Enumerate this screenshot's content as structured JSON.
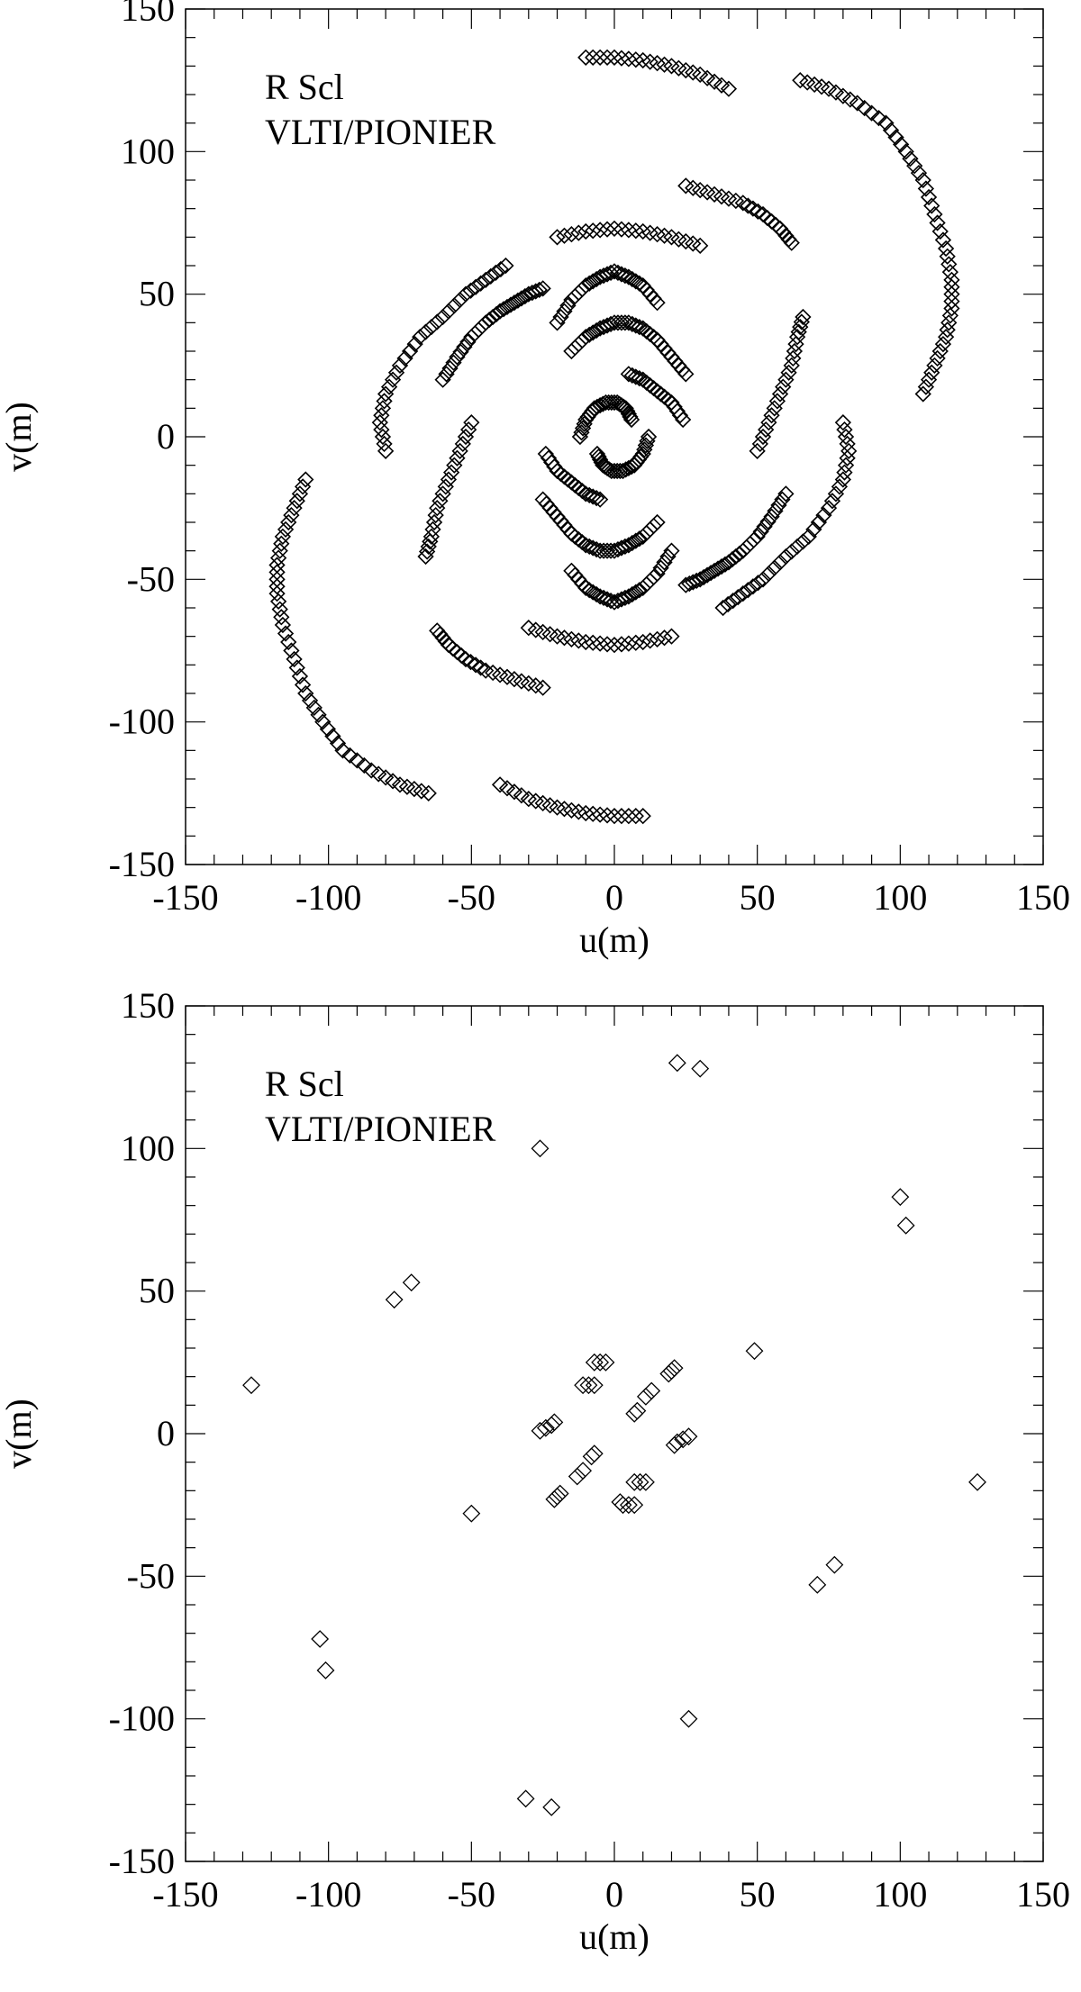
{
  "chart_data": [
    {
      "type": "scatter",
      "title": "",
      "xlabel": "u(m)",
      "ylabel": "v(m)",
      "xlim": [
        -150,
        150
      ],
      "ylim": [
        -150,
        150
      ],
      "xticks": [
        "-150",
        "-100",
        "-50",
        "0",
        "50",
        "100",
        "150"
      ],
      "yticks": [
        "-150",
        "-100",
        "-50",
        "0",
        "50",
        "100",
        "150"
      ],
      "annotations": [
        "R Scl",
        "VLTI/PIONIER"
      ],
      "marker": "open-diamond",
      "grid": false,
      "series": [
        {
          "arc": [
            [
              -20,
              40
            ],
            [
              -15,
              48
            ],
            [
              -10,
              53
            ],
            [
              -5,
              56
            ],
            [
              0,
              58
            ],
            [
              5,
              56
            ],
            [
              10,
              53
            ],
            [
              15,
              47
            ]
          ]
        },
        {
          "arc": [
            [
              20,
              -40
            ],
            [
              15,
              -48
            ],
            [
              10,
              -53
            ],
            [
              5,
              -56
            ],
            [
              0,
              -58
            ],
            [
              -5,
              -56
            ],
            [
              -10,
              -53
            ],
            [
              -15,
              -47
            ]
          ]
        },
        {
          "arc": [
            [
              -15,
              30
            ],
            [
              -10,
              35
            ],
            [
              -5,
              38
            ],
            [
              0,
              40
            ],
            [
              5,
              40
            ],
            [
              10,
              38
            ],
            [
              15,
              34
            ],
            [
              20,
              28
            ],
            [
              25,
              22
            ]
          ]
        },
        {
          "arc": [
            [
              15,
              -30
            ],
            [
              10,
              -35
            ],
            [
              5,
              -38
            ],
            [
              0,
              -40
            ],
            [
              -5,
              -40
            ],
            [
              -10,
              -38
            ],
            [
              -15,
              -34
            ],
            [
              -20,
              -28
            ],
            [
              -25,
              -22
            ]
          ]
        },
        {
          "arc": [
            [
              -60,
              20
            ],
            [
              -55,
              28
            ],
            [
              -50,
              35
            ],
            [
              -45,
              40
            ],
            [
              -40,
              44
            ],
            [
              -35,
              47
            ],
            [
              -30,
              50
            ],
            [
              -25,
              52
            ]
          ]
        },
        {
          "arc": [
            [
              60,
              -20
            ],
            [
              55,
              -28
            ],
            [
              50,
              -35
            ],
            [
              45,
              -40
            ],
            [
              40,
              -44
            ],
            [
              35,
              -47
            ],
            [
              30,
              -50
            ],
            [
              25,
              -52
            ]
          ]
        },
        {
          "arc": [
            [
              -80,
              -5
            ],
            [
              -82,
              5
            ],
            [
              -80,
              15
            ],
            [
              -75,
              25
            ],
            [
              -68,
              35
            ],
            [
              -60,
              42
            ],
            [
              -52,
              50
            ],
            [
              -45,
              55
            ],
            [
              -38,
              60
            ]
          ]
        },
        {
          "arc": [
            [
              80,
              5
            ],
            [
              82,
              -5
            ],
            [
              80,
              -15
            ],
            [
              75,
              -25
            ],
            [
              68,
              -35
            ],
            [
              60,
              -42
            ],
            [
              52,
              -50
            ],
            [
              45,
              -55
            ],
            [
              38,
              -60
            ]
          ]
        },
        {
          "arc": [
            [
              -20,
              70
            ],
            [
              -10,
              72
            ],
            [
              0,
              73
            ],
            [
              10,
              72
            ],
            [
              20,
              70
            ],
            [
              30,
              67
            ]
          ]
        },
        {
          "arc": [
            [
              20,
              -70
            ],
            [
              10,
              -72
            ],
            [
              0,
              -73
            ],
            [
              -10,
              -72
            ],
            [
              -20,
              -70
            ],
            [
              -30,
              -67
            ]
          ]
        },
        {
          "arc": [
            [
              25,
              88
            ],
            [
              35,
              85
            ],
            [
              45,
              82
            ],
            [
              52,
              78
            ],
            [
              58,
              73
            ],
            [
              62,
              68
            ]
          ]
        },
        {
          "arc": [
            [
              -25,
              -88
            ],
            [
              -35,
              -85
            ],
            [
              -45,
              -82
            ],
            [
              -52,
              -78
            ],
            [
              -58,
              -73
            ],
            [
              -62,
              -68
            ]
          ]
        },
        {
          "arc": [
            [
              -10,
              133
            ],
            [
              0,
              133
            ],
            [
              10,
              132
            ],
            [
              20,
              130
            ],
            [
              30,
              127
            ],
            [
              40,
              122
            ]
          ]
        },
        {
          "arc": [
            [
              10,
              -133
            ],
            [
              0,
              -133
            ],
            [
              -10,
              -132
            ],
            [
              -20,
              -130
            ],
            [
              -30,
              -127
            ],
            [
              -40,
              -122
            ]
          ]
        },
        {
          "arc": [
            [
              65,
              125
            ],
            [
              75,
              122
            ],
            [
              85,
              117
            ],
            [
              95,
              110
            ],
            [
              102,
              100
            ],
            [
              108,
              90
            ],
            [
              112,
              78
            ],
            [
              116,
              66
            ],
            [
              118,
              55
            ],
            [
              118,
              45
            ],
            [
              116,
              35
            ],
            [
              112,
              25
            ],
            [
              108,
              15
            ]
          ]
        },
        {
          "arc": [
            [
              -65,
              -125
            ],
            [
              -75,
              -122
            ],
            [
              -85,
              -117
            ],
            [
              -95,
              -110
            ],
            [
              -102,
              -100
            ],
            [
              -108,
              -90
            ],
            [
              -112,
              -78
            ],
            [
              -116,
              -66
            ],
            [
              -118,
              -55
            ],
            [
              -118,
              -45
            ],
            [
              -116,
              -35
            ],
            [
              -112,
              -25
            ],
            [
              -108,
              -15
            ]
          ]
        },
        {
          "arc": [
            [
              50,
              -5
            ],
            [
              54,
              5
            ],
            [
              58,
              15
            ],
            [
              62,
              25
            ],
            [
              64,
              35
            ],
            [
              66,
              42
            ]
          ]
        },
        {
          "arc": [
            [
              -50,
              5
            ],
            [
              -54,
              -5
            ],
            [
              -58,
              -15
            ],
            [
              -62,
              -25
            ],
            [
              -64,
              -35
            ],
            [
              -66,
              -42
            ]
          ]
        },
        {
          "arc": [
            [
              -12,
              0
            ],
            [
              -10,
              6
            ],
            [
              -7,
              10
            ],
            [
              -3,
              12
            ],
            [
              1,
              12
            ],
            [
              4,
              10
            ],
            [
              6,
              6
            ]
          ]
        },
        {
          "arc": [
            [
              12,
              0
            ],
            [
              10,
              -6
            ],
            [
              7,
              -10
            ],
            [
              3,
              -12
            ],
            [
              -1,
              -12
            ],
            [
              -4,
              -10
            ],
            [
              -6,
              -6
            ]
          ]
        },
        {
          "arc": [
            [
              5,
              22
            ],
            [
              10,
              20
            ],
            [
              15,
              16
            ],
            [
              20,
              12
            ],
            [
              24,
              6
            ]
          ]
        },
        {
          "arc": [
            [
              -5,
              -22
            ],
            [
              -10,
              -20
            ],
            [
              -15,
              -16
            ],
            [
              -20,
              -12
            ],
            [
              -24,
              -6
            ]
          ]
        }
      ]
    },
    {
      "type": "scatter",
      "title": "",
      "xlabel": "u(m)",
      "ylabel": "v(m)",
      "xlim": [
        -150,
        150
      ],
      "ylim": [
        -150,
        150
      ],
      "xticks": [
        "-150",
        "-100",
        "-50",
        "0",
        "50",
        "100",
        "150"
      ],
      "yticks": [
        "-150",
        "-100",
        "-50",
        "0",
        "50",
        "100",
        "150"
      ],
      "annotations": [
        "R Scl",
        "VLTI/PIONIER"
      ],
      "marker": "open-diamond",
      "grid": false,
      "points": [
        [
          22,
          130
        ],
        [
          30,
          128
        ],
        [
          -26,
          100
        ],
        [
          100,
          83
        ],
        [
          102,
          73
        ],
        [
          -77,
          47
        ],
        [
          -71,
          53
        ],
        [
          -127,
          17
        ],
        [
          49,
          29
        ],
        [
          -50,
          -28
        ],
        [
          -103,
          -72
        ],
        [
          -101,
          -83
        ],
        [
          -31,
          -128
        ],
        [
          -22,
          -131
        ],
        [
          71,
          -53
        ],
        [
          77,
          -46
        ],
        [
          127,
          -17
        ],
        [
          26,
          -100
        ],
        [
          -7,
          25
        ],
        [
          -5,
          25
        ],
        [
          -3,
          25
        ],
        [
          -11,
          17
        ],
        [
          -9,
          17
        ],
        [
          -7,
          17
        ],
        [
          19,
          21
        ],
        [
          20,
          22
        ],
        [
          21,
          23
        ],
        [
          -26,
          1
        ],
        [
          -24,
          2
        ],
        [
          -22,
          3
        ],
        [
          -21,
          4
        ],
        [
          7,
          7
        ],
        [
          8,
          8
        ],
        [
          11,
          13
        ],
        [
          13,
          15
        ],
        [
          -7,
          -7
        ],
        [
          -8,
          -8
        ],
        [
          -11,
          -13
        ],
        [
          -13,
          -15
        ],
        [
          -19,
          -21
        ],
        [
          -20,
          -22
        ],
        [
          -21,
          -23
        ],
        [
          7,
          -25
        ],
        [
          5,
          -25
        ],
        [
          3,
          -25
        ],
        [
          2,
          -24
        ],
        [
          11,
          -17
        ],
        [
          9,
          -17
        ],
        [
          7,
          -17
        ],
        [
          26,
          -1
        ],
        [
          24,
          -2
        ],
        [
          22,
          -3
        ],
        [
          21,
          -4
        ]
      ]
    }
  ]
}
